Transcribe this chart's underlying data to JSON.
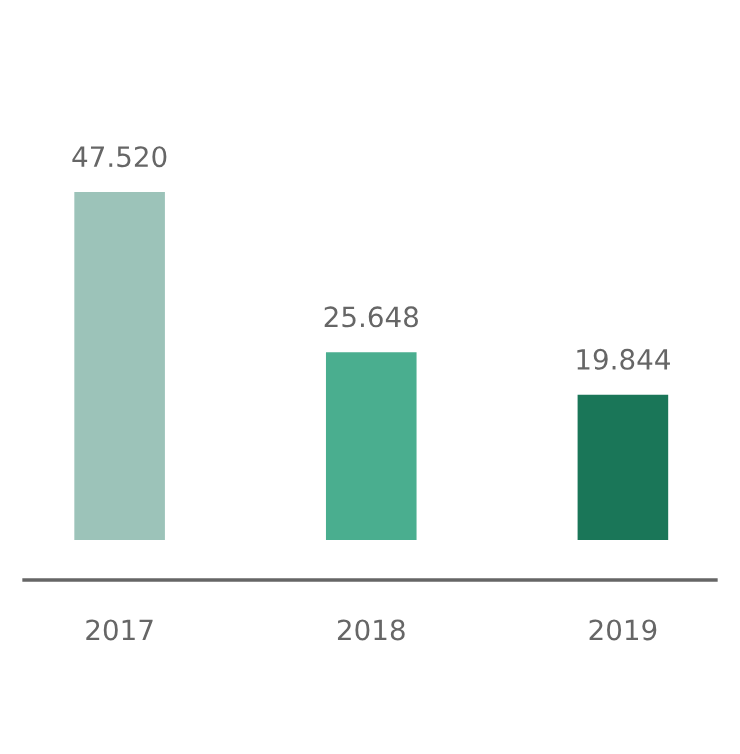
{
  "chart_data": {
    "type": "bar",
    "categories": [
      "2017",
      "2018",
      "2019"
    ],
    "values": [
      47520,
      25648,
      19844
    ],
    "colors": [
      "#9cc3b9",
      "#4aae8f",
      "#1a7658"
    ],
    "value_labels": [
      "47.520",
      "25.648",
      "19.844"
    ],
    "grid": false,
    "legend": false
  }
}
